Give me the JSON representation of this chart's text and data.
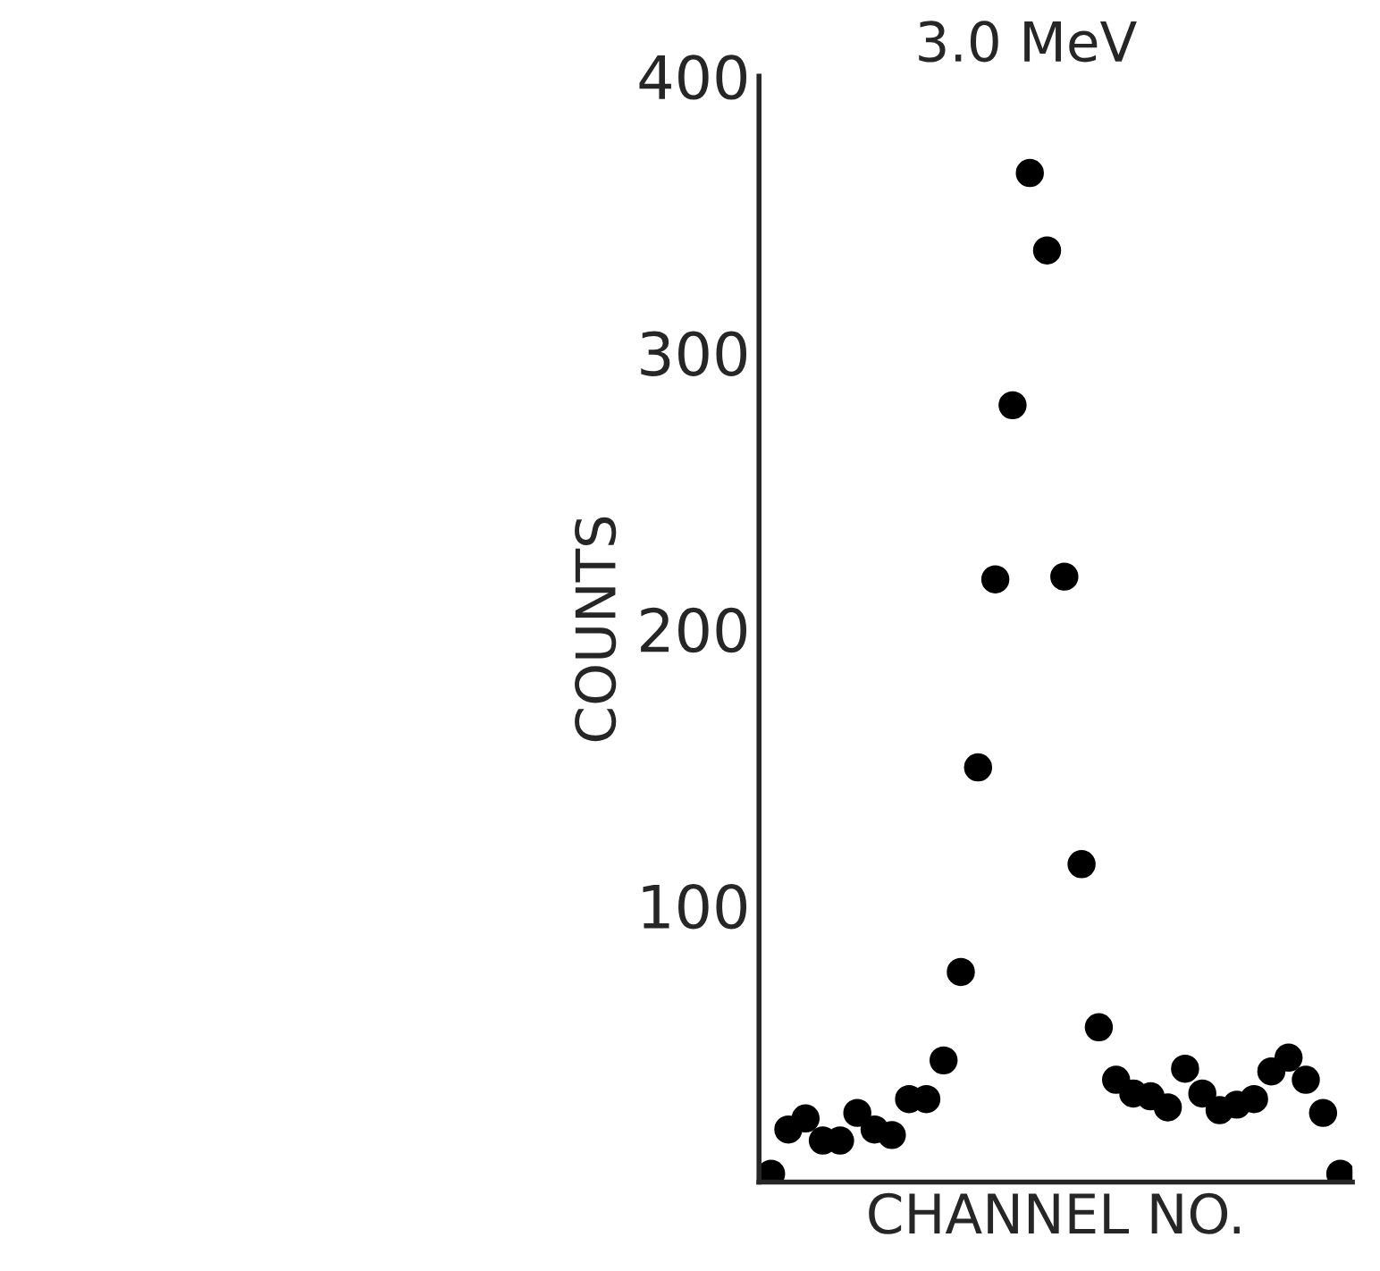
{
  "chart_data": {
    "type": "scatter",
    "title": "3.0 MeV",
    "xlabel": "CHANNEL NO.",
    "ylabel": "COUNTS",
    "categories": [
      null,
      null,
      null,
      null,
      null,
      null,
      null,
      null,
      null,
      null,
      null,
      null,
      null,
      null,
      null,
      null,
      null,
      null,
      null,
      null,
      null,
      null,
      null,
      null,
      null,
      null,
      null,
      null,
      null,
      null,
      null,
      null,
      null,
      null
    ],
    "series": [
      {
        "color": "#000000",
        "values": [
          3,
          19,
          23,
          15,
          15,
          25,
          19,
          17,
          30,
          30,
          44,
          76,
          150,
          218,
          281,
          365,
          337,
          219,
          115,
          56,
          37,
          32,
          31,
          27,
          41,
          32,
          26,
          28,
          30,
          40,
          45,
          37,
          25,
          3
        ]
      }
    ],
    "ylim": [
      0,
      400
    ],
    "yticks": [
      100,
      200,
      300,
      400
    ],
    "tick_labels": "y",
    "grid": false,
    "legend": false,
    "marker": "circle"
  }
}
